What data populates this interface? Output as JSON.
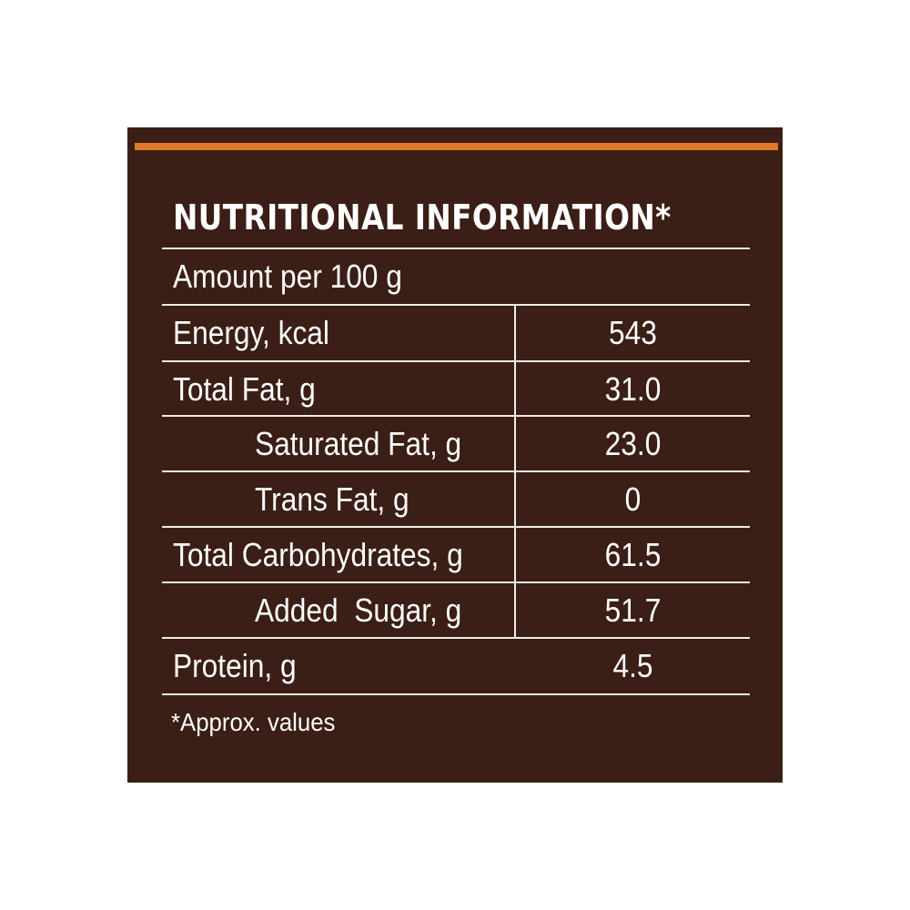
{
  "label": {
    "title": "NUTRITIONAL INFORMATION*",
    "serving": "Amount per 100 g",
    "rows": [
      {
        "nutrient": "Energy, kcal",
        "value": "543"
      },
      {
        "nutrient": "Total Fat, g",
        "value": "31.0"
      },
      {
        "nutrient": "Saturated Fat, g",
        "value": "23.0"
      },
      {
        "nutrient": "Trans Fat, g",
        "value": "0"
      },
      {
        "nutrient": "Total Carbohydrates, g",
        "value": "61.5"
      },
      {
        "nutrient": "Added  Sugar, g",
        "value": "51.7"
      },
      {
        "nutrient": "Protein, g",
        "value": "4.5"
      }
    ],
    "footnote": "*Approx. values"
  },
  "colors": {
    "panel_background": "#3b1e15",
    "accent_bar": "#e07a2a",
    "text": "#ffffff",
    "rules": "#f2ece6"
  }
}
